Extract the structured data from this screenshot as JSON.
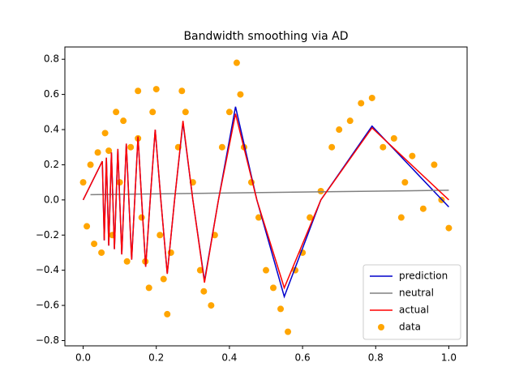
{
  "chart_data": {
    "type": "line",
    "title": "Bandwidth smoothing via AD",
    "xlim": [
      -0.05,
      1.05
    ],
    "ylim": [
      -0.83,
      0.87
    ],
    "xticks": [
      {
        "value": 0,
        "label": "0.0"
      },
      {
        "value": 0.2,
        "label": "0.2"
      },
      {
        "value": 0.4,
        "label": "0.4"
      },
      {
        "value": 0.6,
        "label": "0.6"
      },
      {
        "value": 0.8,
        "label": "0.8"
      },
      {
        "value": 1.0,
        "label": "1.0"
      }
    ],
    "yticks": [
      {
        "value": -0.8,
        "label": "−0.8"
      },
      {
        "value": -0.6,
        "label": "−0.6"
      },
      {
        "value": -0.4,
        "label": "−0.4"
      },
      {
        "value": -0.2,
        "label": "−0.2"
      },
      {
        "value": 0,
        "label": "0.0"
      },
      {
        "value": 0.2,
        "label": "0.2"
      },
      {
        "value": 0.4,
        "label": "0.4"
      },
      {
        "value": 0.6,
        "label": "0.6"
      },
      {
        "value": 0.8,
        "label": "0.8"
      }
    ],
    "legend": "lower right",
    "series": [
      {
        "name": "prediction",
        "type": "line",
        "color": "#0000cc",
        "x": [
          0,
          0.0524,
          0.0577,
          0.0635,
          0.07,
          0.0773,
          0.0855,
          0.0948,
          0.1,
          0.1056,
          0.118,
          0.125,
          0.1326,
          0.15,
          0.16,
          0.171,
          0.1833,
          0.197,
          0.2125,
          0.23,
          0.25,
          0.273,
          0.3,
          0.3318,
          0.37,
          0.4167,
          0.475,
          0.55,
          0.65,
          0.79,
          1.0
        ],
        "values": [
          0,
          0.22,
          -0.23,
          0.24,
          -0.26,
          0.27,
          -0.28,
          0.29,
          0,
          -0.31,
          0.32,
          0,
          -0.34,
          0.36,
          0,
          -0.38,
          0,
          0.4,
          0,
          -0.42,
          0,
          0.44,
          0,
          -0.46,
          0,
          0.53,
          0,
          -0.55,
          0,
          0.42,
          -0.04
        ]
      },
      {
        "name": "neutral",
        "type": "line",
        "color": "#808080",
        "x": [
          0.02,
          1.0
        ],
        "values": [
          0.03,
          0.055
        ]
      },
      {
        "name": "actual",
        "type": "line",
        "color": "#ff0000",
        "x": [
          0,
          0.0524,
          0.0577,
          0.0635,
          0.07,
          0.0773,
          0.0855,
          0.0948,
          0.1,
          0.1056,
          0.118,
          0.125,
          0.1326,
          0.15,
          0.16,
          0.171,
          0.1833,
          0.197,
          0.2125,
          0.23,
          0.25,
          0.273,
          0.3,
          0.3318,
          0.37,
          0.4167,
          0.475,
          0.55,
          0.65,
          0.79,
          1.0
        ],
        "values": [
          0,
          0.22,
          -0.23,
          0.24,
          -0.26,
          0.27,
          -0.28,
          0.29,
          0,
          -0.31,
          0.32,
          0,
          -0.34,
          0.36,
          0,
          -0.38,
          0,
          0.4,
          0,
          -0.42,
          0,
          0.45,
          0,
          -0.47,
          0,
          0.49,
          0,
          -0.5,
          0,
          0.41,
          0
        ]
      },
      {
        "name": "data",
        "type": "scatter",
        "color": "#ffa500",
        "x": [
          0,
          0.01,
          0.02,
          0.03,
          0.04,
          0.05,
          0.06,
          0.07,
          0.08,
          0.09,
          0.1,
          0.11,
          0.12,
          0.13,
          0.15,
          0.15,
          0.16,
          0.17,
          0.18,
          0.19,
          0.2,
          0.21,
          0.22,
          0.23,
          0.24,
          0.26,
          0.27,
          0.28,
          0.3,
          0.32,
          0.33,
          0.35,
          0.36,
          0.38,
          0.4,
          0.42,
          0.43,
          0.44,
          0.46,
          0.48,
          0.5,
          0.52,
          0.54,
          0.56,
          0.58,
          0.6,
          0.62,
          0.65,
          0.68,
          0.7,
          0.73,
          0.76,
          0.79,
          0.82,
          0.85,
          0.88,
          0.9,
          0.93,
          0.96,
          0.98,
          1.0,
          0.87
        ],
        "values": [
          0.1,
          -0.15,
          0.2,
          -0.25,
          0.27,
          -0.3,
          0.38,
          0.28,
          -0.2,
          0.5,
          0.1,
          0.45,
          -0.35,
          0.3,
          0.62,
          0.35,
          -0.1,
          -0.35,
          -0.5,
          0.5,
          0.63,
          -0.2,
          -0.45,
          -0.65,
          -0.3,
          0.3,
          0.62,
          0.5,
          0.1,
          -0.4,
          -0.52,
          -0.6,
          -0.2,
          0.3,
          0.5,
          0.78,
          0.6,
          0.3,
          0.1,
          -0.1,
          -0.4,
          -0.5,
          -0.62,
          -0.75,
          -0.4,
          -0.3,
          -0.1,
          0.05,
          0.3,
          0.4,
          0.45,
          0.55,
          0.58,
          0.3,
          0.35,
          0.1,
          0.25,
          -0.05,
          0.2,
          0,
          -0.16,
          -0.1
        ]
      }
    ]
  }
}
